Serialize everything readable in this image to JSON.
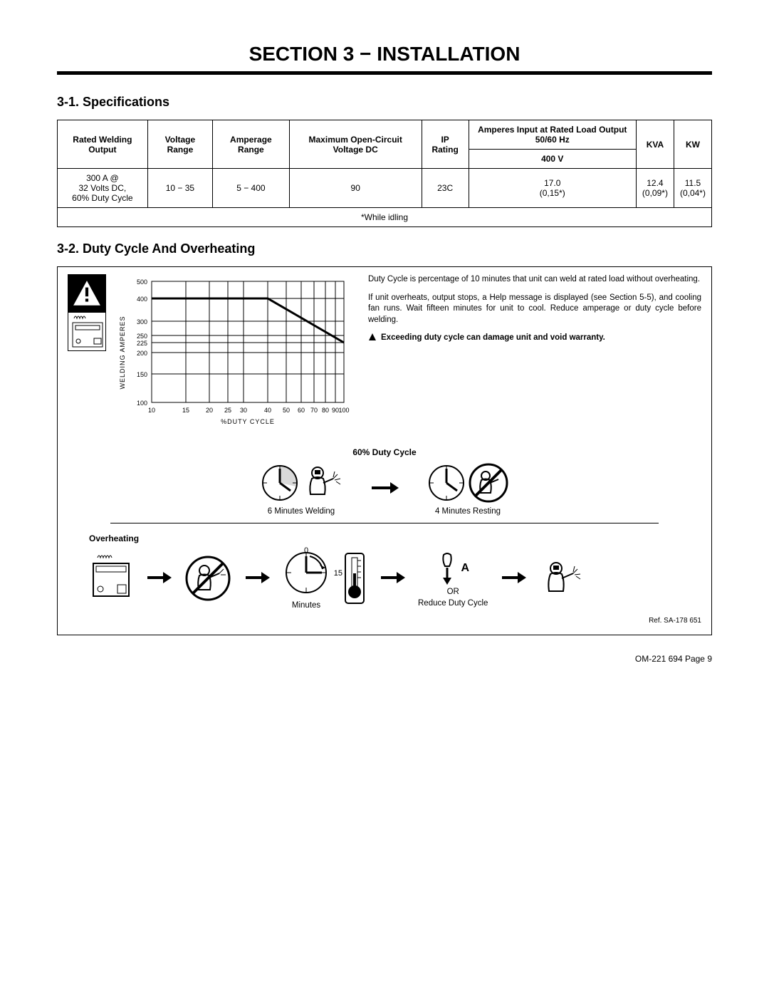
{
  "section_title": "SECTION 3 − INSTALLATION",
  "spec": {
    "heading": "3-1.   Specifications",
    "columns": {
      "rated_output": "Rated Welding Output",
      "voltage_range": "Voltage Range",
      "amperage_range": "Amperage Range",
      "max_ocv": "Maximum Open-Circuit Voltage DC",
      "ip_rating": "IP Rating",
      "amperes_input": "Amperes Input at Rated Load Output 50/60 Hz",
      "sub_400v": "400 V",
      "kva": "KVA",
      "kw": "KW"
    },
    "row": {
      "rated_output": "300 A @\n32 Volts DC,\n60% Duty Cycle",
      "voltage_range": "10 − 35",
      "amperage_range": "5 − 400",
      "max_ocv": "90",
      "ip_rating": "23C",
      "v400": "17.0\n(0,15*)",
      "kva": "12.4\n(0,09*)",
      "kw": "11.5\n(0,04*)"
    },
    "idling_note": "*While idling"
  },
  "duty": {
    "heading": "3-2.   Duty Cycle And Overheating",
    "chart": {
      "type": "line",
      "x_label": "%DUTY CYCLE",
      "y_label": "WELDING AMPERES",
      "x_ticks": [
        10,
        15,
        20,
        25,
        30,
        40,
        50,
        60,
        70,
        80,
        90,
        100
      ],
      "y_ticks": [
        100,
        150,
        200,
        225,
        250,
        300,
        400,
        500
      ],
      "x_scale": "log",
      "y_scale": "log",
      "line_points": [
        [
          10,
          400
        ],
        [
          40,
          400
        ],
        [
          100,
          225
        ]
      ],
      "line_color": "#000000",
      "line_width": 3,
      "grid_color": "#000000",
      "background_color": "#ffffff",
      "axis_font_size": 9
    },
    "desc_p1": "Duty Cycle is percentage of 10 minutes that unit can weld at rated load without overheating.",
    "desc_p2": "If unit overheats, output stops, a Help message is displayed (see Section 5-5), and cooling fan runs. Wait fifteen minutes for unit to cool. Reduce amperage or duty cycle before welding.",
    "warn_text": "Exceeding duty cycle can damage unit and void warranty.",
    "sixty_label": "60% Duty Cycle",
    "welding_caption": "6 Minutes Welding",
    "resting_caption": "4 Minutes Resting",
    "overheating_label": "Overheating",
    "minutes_zero": "0",
    "minutes_fifteen": "15",
    "minutes_caption": "Minutes",
    "amp_letter": "A",
    "or_label": "OR",
    "reduce_label": "Reduce Duty Cycle",
    "ref_note": "Ref. SA-178 651"
  },
  "footer": "OM-221 694 Page 9"
}
